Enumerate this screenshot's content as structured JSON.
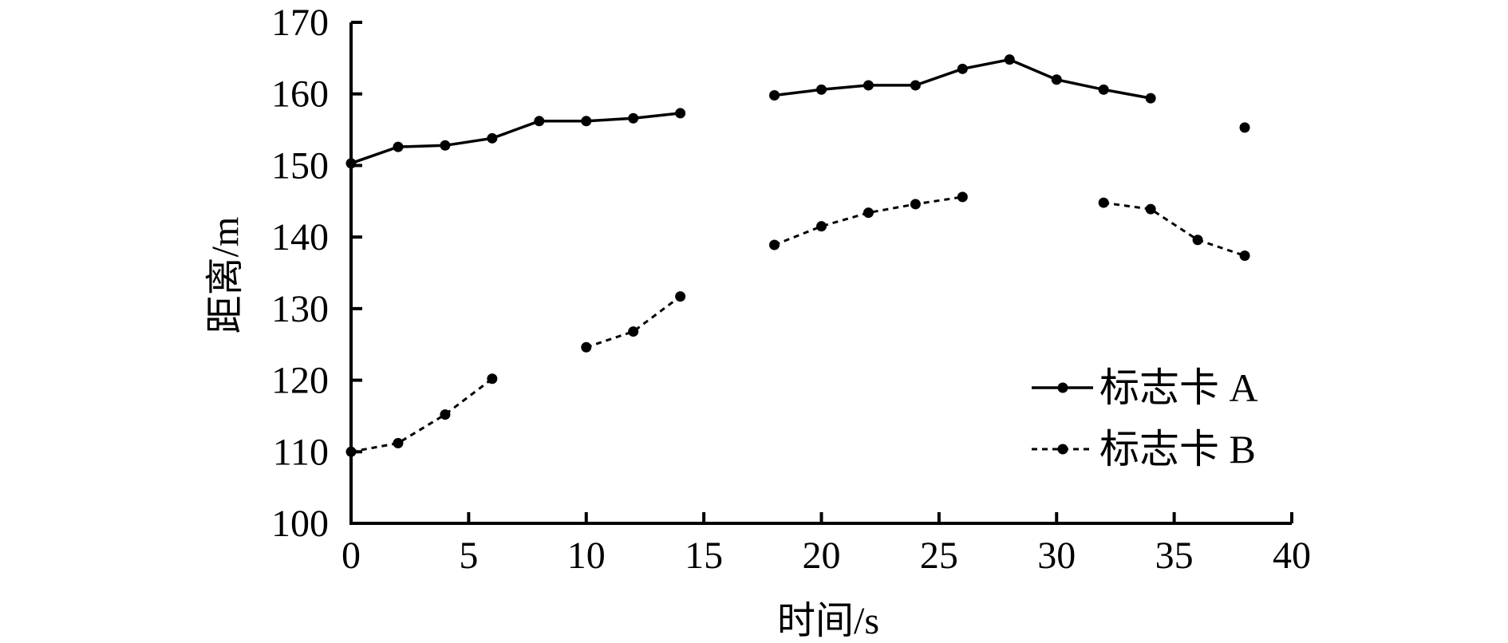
{
  "chart_data": {
    "type": "line",
    "title": "",
    "xlabel": "时间/s",
    "ylabel": "距离/m",
    "xlim": [
      0,
      40
    ],
    "ylim": [
      100,
      170
    ],
    "xticks": [
      0,
      5,
      10,
      15,
      20,
      25,
      30,
      35,
      40
    ],
    "yticks": [
      100,
      110,
      120,
      130,
      140,
      150,
      160,
      170
    ],
    "grid": false,
    "legend_position": "bottom-right",
    "series": [
      {
        "name": "标志卡 A",
        "style": "solid",
        "color": "#000000",
        "segments": [
          [
            [
              0,
              150.3
            ],
            [
              2,
              152.6
            ],
            [
              4,
              152.8
            ],
            [
              6,
              153.8
            ],
            [
              8,
              156.2
            ],
            [
              10,
              156.2
            ],
            [
              12,
              156.6
            ],
            [
              14,
              157.3
            ]
          ],
          [
            [
              18,
              159.8
            ],
            [
              20,
              160.6
            ],
            [
              22,
              161.2
            ],
            [
              24,
              161.2
            ],
            [
              26,
              163.5
            ],
            [
              28,
              164.8
            ],
            [
              30,
              162.0
            ],
            [
              32,
              160.6
            ],
            [
              34,
              159.4
            ]
          ],
          [
            [
              38,
              155.3
            ]
          ]
        ]
      },
      {
        "name": "标志卡 B",
        "style": "dashed",
        "color": "#000000",
        "segments": [
          [
            [
              0,
              110.0
            ],
            [
              2,
              111.2
            ],
            [
              4,
              115.2
            ],
            [
              6,
              120.2
            ]
          ],
          [
            [
              10,
              124.6
            ],
            [
              12,
              126.8
            ],
            [
              14,
              131.7
            ]
          ],
          [
            [
              18,
              138.9
            ],
            [
              20,
              141.5
            ],
            [
              22,
              143.4
            ],
            [
              24,
              144.6
            ],
            [
              26,
              145.6
            ]
          ],
          [
            [
              32,
              144.8
            ],
            [
              34,
              143.9
            ],
            [
              36,
              139.6
            ],
            [
              38,
              137.4
            ]
          ]
        ]
      }
    ]
  }
}
